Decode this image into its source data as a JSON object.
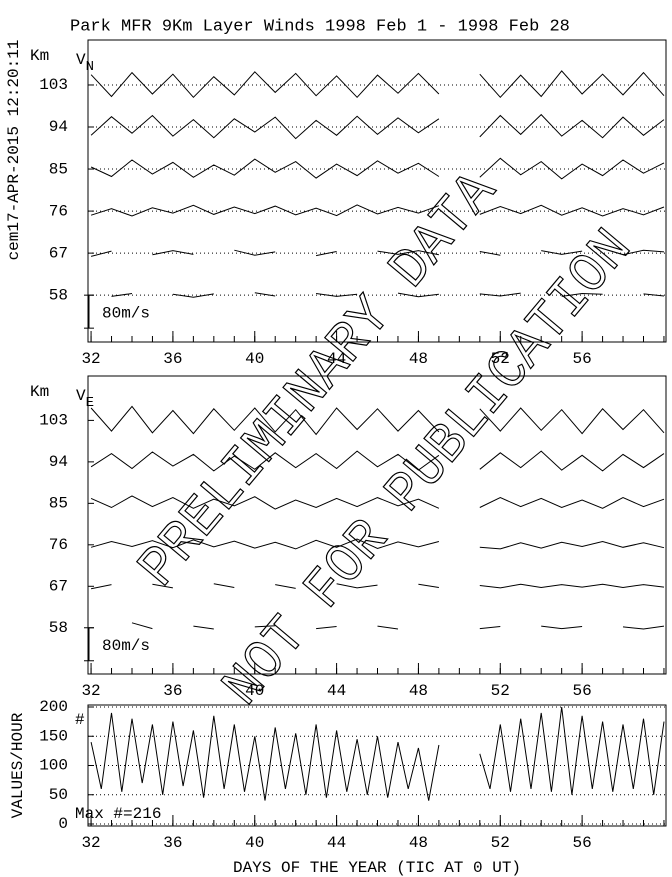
{
  "timestamp": "cem17-APR-2015 12:20:11",
  "watermark": [
    "PRELIMINARY DATA",
    "NOT FOR PUBLICATION"
  ],
  "chart_data": [
    {
      "type": "wind-profile",
      "title": "Park MFR 9Km Layer Winds 1998 Feb  1 - 1998 Feb 28",
      "ylabel": "Km",
      "component": "V",
      "component_sub": "N",
      "scale_bar": {
        "value": 80,
        "label": "80m/s"
      },
      "xlim": [
        31.85,
        60.1
      ],
      "xticks": [
        32,
        36,
        40,
        44,
        48,
        52,
        56
      ],
      "xminor_ticks": [
        32,
        33,
        34,
        35,
        36,
        37,
        38,
        39,
        40,
        41,
        42,
        43,
        44,
        45,
        46,
        47,
        48,
        49,
        50,
        51,
        52,
        53,
        54,
        55,
        56,
        57,
        58,
        59,
        60
      ],
      "ylim": [
        48.4,
        112.2
      ],
      "yticks": [
        58,
        67,
        76,
        85,
        94,
        103
      ],
      "grid": true,
      "x": [
        32,
        33,
        34,
        35,
        36,
        37,
        38,
        39,
        40,
        41,
        42,
        43,
        44,
        45,
        46,
        47,
        48,
        49,
        50,
        51,
        52,
        53,
        54,
        55,
        56,
        57,
        58,
        59,
        60
      ],
      "series": [
        {
          "color": "#000",
          "values": [
            null,
            -3,
            4,
            null,
            2,
            -5,
            3,
            null,
            6,
            -2,
            null,
            4,
            -3,
            2,
            null,
            5,
            -4,
            2,
            null,
            3,
            -2,
            5,
            null,
            -3,
            4,
            2,
            null,
            3,
            -2
          ]
        },
        {
          "color": "#000",
          "values": [
            -8,
            5,
            null,
            -4,
            6,
            -3,
            null,
            7,
            -5,
            3,
            null,
            -6,
            4,
            null,
            5,
            -3,
            6,
            -4,
            null,
            4,
            -5,
            null,
            6,
            -3,
            5,
            null,
            -4,
            7,
            3
          ]
        },
        {
          "color": "#000",
          "values": [
            -10,
            6,
            -12,
            8,
            -5,
            14,
            -8,
            10,
            -6,
            12,
            -9,
            7,
            -11,
            15,
            -7,
            9,
            -5,
            13,
            null,
            -8,
            11,
            -6,
            14,
            -10,
            8,
            -12,
            6,
            -9,
            10
          ]
        },
        {
          "color": "#000",
          "values": [
            5,
            -18,
            22,
            -12,
            16,
            -20,
            10,
            -15,
            24,
            -8,
            18,
            -22,
            12,
            -16,
            20,
            -10,
            14,
            -18,
            null,
            -20,
            26,
            -14,
            18,
            -24,
            12,
            -16,
            22,
            -10,
            15
          ]
        },
        {
          "color": "#000",
          "values": [
            -20,
            25,
            -15,
            28,
            -22,
            18,
            -26,
            20,
            -12,
            24,
            -28,
            16,
            -20,
            26,
            -18,
            22,
            -14,
            20,
            null,
            -24,
            28,
            -18,
            30,
            -22,
            16,
            -26,
            24,
            -20,
            18
          ]
        },
        {
          "color": "#000",
          "values": [
            25,
            -28,
            30,
            -22,
            26,
            -30,
            20,
            -24,
            32,
            -18,
            28,
            -26,
            22,
            -30,
            24,
            -20,
            28,
            -22,
            null,
            26,
            -30,
            24,
            -28,
            34,
            -22,
            26,
            -24,
            30,
            -26
          ]
        }
      ]
    },
    {
      "type": "wind-profile",
      "ylabel": "Km",
      "component": "V",
      "component_sub": "E",
      "scale_bar": {
        "value": 80,
        "label": "80m/s"
      },
      "xlim": [
        31.85,
        60.1
      ],
      "xticks": [
        32,
        36,
        40,
        44,
        48,
        52,
        56
      ],
      "xminor_ticks": [
        32,
        33,
        34,
        35,
        36,
        37,
        38,
        39,
        40,
        41,
        42,
        43,
        44,
        45,
        46,
        47,
        48,
        49,
        50,
        51,
        52,
        53,
        54,
        55,
        56,
        57,
        58,
        59,
        60
      ],
      "ylim": [
        48.4,
        112.2
      ],
      "yticks": [
        58,
        67,
        76,
        85,
        94,
        103
      ],
      "grid": false,
      "x": [
        32,
        33,
        34,
        35,
        36,
        37,
        38,
        39,
        40,
        41,
        42,
        43,
        44,
        45,
        46,
        47,
        48,
        49,
        50,
        51,
        52,
        53,
        54,
        55,
        56,
        57,
        58,
        59,
        60
      ],
      "series": [
        {
          "color": "#000",
          "values": [
            3,
            null,
            12,
            -2,
            null,
            4,
            -3,
            null,
            2,
            5,
            null,
            -2,
            3,
            null,
            4,
            -3,
            null,
            2,
            null,
            -2,
            3,
            null,
            4,
            -2,
            3,
            null,
            2,
            -3,
            4
          ]
        },
        {
          "color": "#000",
          "values": [
            -6,
            4,
            null,
            5,
            -4,
            null,
            6,
            -3,
            null,
            4,
            -5,
            null,
            6,
            -4,
            3,
            null,
            5,
            -3,
            null,
            2,
            -4,
            5,
            -3,
            4,
            -2,
            5,
            -3,
            4,
            -2
          ]
        },
        {
          "color": "#000",
          "values": [
            -6,
            8,
            -4,
            10,
            -7,
            12,
            -5,
            9,
            -8,
            6,
            -10,
            11,
            -6,
            14,
            -9,
            7,
            -5,
            8,
            null,
            -6,
            -10,
            5,
            -8,
            6,
            -4,
            8,
            -6,
            5,
            -7
          ]
        },
        {
          "color": "#000",
          "values": [
            12,
            -10,
            18,
            -8,
            14,
            -12,
            10,
            -6,
            16,
            -14,
            8,
            -10,
            12,
            -8,
            14,
            -6,
            10,
            -12,
            null,
            -10,
            14,
            -8,
            12,
            -10,
            8,
            -12,
            14,
            -8,
            10
          ]
        },
        {
          "color": "#000",
          "values": [
            -12,
            20,
            -16,
            24,
            -10,
            18,
            -22,
            14,
            -18,
            22,
            -14,
            20,
            -16,
            26,
            -12,
            18,
            -20,
            16,
            null,
            -18,
            22,
            -14,
            26,
            -20,
            16,
            -22,
            18,
            -14,
            20
          ]
        },
        {
          "color": "#000",
          "values": [
            30,
            -26,
            34,
            -30,
            24,
            -32,
            28,
            -24,
            30,
            -28,
            26,
            -34,
            30,
            -22,
            28,
            -26,
            24,
            -28,
            null,
            28,
            -26,
            30,
            -24,
            26,
            -32,
            28,
            -22,
            26,
            -30
          ]
        }
      ]
    },
    {
      "type": "line",
      "ylabel": "VALUES/HOUR",
      "xlabel": "DAYS OF THE YEAR (TIC AT 0 UT)",
      "count_label": "#",
      "max_label": "Max #=216",
      "xlim": [
        31.85,
        60.1
      ],
      "xticks": [
        32,
        36,
        40,
        44,
        48,
        52,
        56
      ],
      "xminor_ticks": [
        32,
        33,
        34,
        35,
        36,
        37,
        38,
        39,
        40,
        41,
        42,
        43,
        44,
        45,
        46,
        47,
        48,
        49,
        50,
        51,
        52,
        53,
        54,
        55,
        56,
        57,
        58,
        59,
        60
      ],
      "ylim": [
        0,
        200
      ],
      "yticks": [
        0,
        50,
        100,
        150,
        200
      ],
      "grid": true,
      "x": [
        32,
        32.5,
        33,
        33.5,
        34,
        34.5,
        35,
        35.5,
        36,
        36.5,
        37,
        37.5,
        38,
        38.5,
        39,
        39.5,
        40,
        40.5,
        41,
        41.5,
        42,
        42.5,
        43,
        43.5,
        44,
        44.5,
        45,
        45.5,
        46,
        46.5,
        47,
        47.5,
        48,
        48.5,
        49,
        49.5,
        50,
        50.5,
        51,
        51.5,
        52,
        52.5,
        53,
        53.5,
        54,
        54.5,
        55,
        55.5,
        56,
        56.5,
        57,
        57.5,
        58,
        58.5,
        59,
        59.5,
        60
      ],
      "series": [
        {
          "color": "#000",
          "values": [
            140,
            60,
            190,
            55,
            180,
            70,
            170,
            50,
            175,
            65,
            160,
            45,
            185,
            60,
            170,
            55,
            150,
            40,
            165,
            60,
            155,
            50,
            170,
            45,
            160,
            55,
            145,
            50,
            150,
            45,
            140,
            60,
            130,
            40,
            135,
            null,
            null,
            null,
            120,
            60,
            170,
            55,
            180,
            60,
            190,
            55,
            200,
            50,
            185,
            60,
            175,
            55,
            170,
            60,
            180,
            50,
            175
          ]
        }
      ]
    }
  ]
}
